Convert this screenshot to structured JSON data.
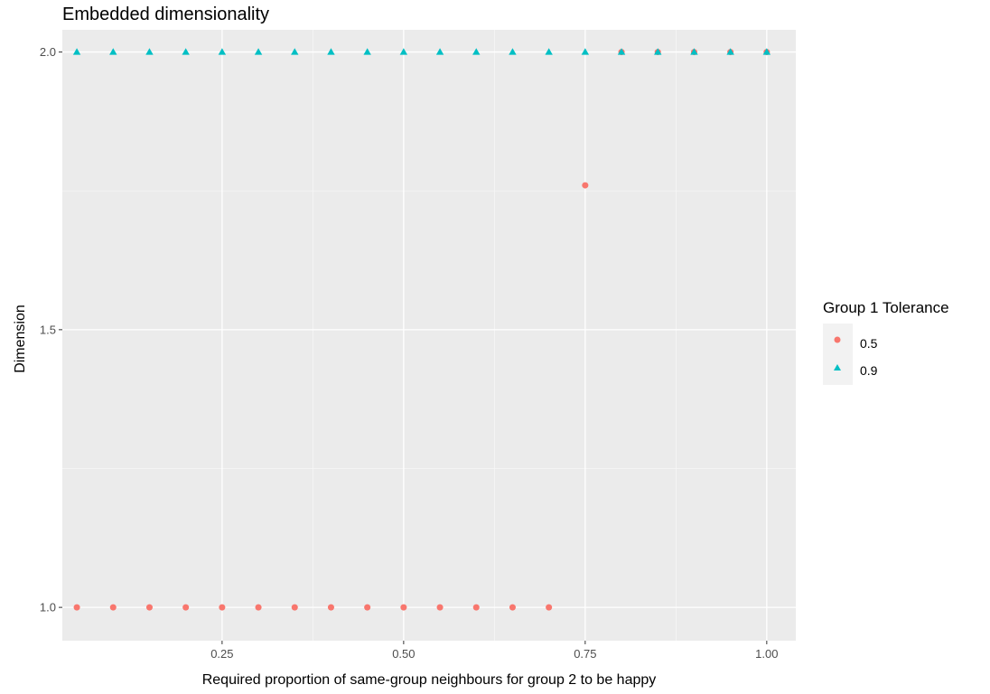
{
  "chart_data": {
    "type": "scatter",
    "title": "Embedded dimensionality",
    "xlabel": "Required proportion of same-group neighbours for group 2 to be happy",
    "ylabel": "Dimension",
    "xlim": [
      0.03,
      1.04
    ],
    "ylim": [
      0.94,
      2.04
    ],
    "x_ticks": [
      0.25,
      0.5,
      0.75,
      1.0
    ],
    "x_tick_labels": [
      "0.25",
      "0.50",
      "0.75",
      "1.00"
    ],
    "y_ticks": [
      1.0,
      1.5,
      2.0
    ],
    "y_tick_labels": [
      "1.0",
      "1.5",
      "2.0"
    ],
    "grid": true,
    "legend": {
      "title": "Group 1 Tolerance",
      "position": "right"
    },
    "series": [
      {
        "name": "0.5",
        "color": "#F8766D",
        "marker": "circle",
        "x": [
          0.05,
          0.1,
          0.15,
          0.2,
          0.25,
          0.3,
          0.35,
          0.4,
          0.45,
          0.5,
          0.55,
          0.6,
          0.65,
          0.7,
          0.75,
          0.8,
          0.85,
          0.9,
          0.95,
          1.0
        ],
        "y": [
          1,
          1,
          1,
          1,
          1,
          1,
          1,
          1,
          1,
          1,
          1,
          1,
          1,
          1,
          1.76,
          2,
          2,
          2,
          2,
          2
        ]
      },
      {
        "name": "0.9",
        "color": "#00BFC4",
        "marker": "triangle",
        "x": [
          0.05,
          0.1,
          0.15,
          0.2,
          0.25,
          0.3,
          0.35,
          0.4,
          0.45,
          0.5,
          0.55,
          0.6,
          0.65,
          0.7,
          0.75,
          0.8,
          0.85,
          0.9,
          0.95,
          1.0
        ],
        "y": [
          2,
          2,
          2,
          2,
          2,
          2,
          2,
          2,
          2,
          2,
          2,
          2,
          2,
          2,
          2,
          2,
          2,
          2,
          2,
          2
        ]
      }
    ]
  }
}
